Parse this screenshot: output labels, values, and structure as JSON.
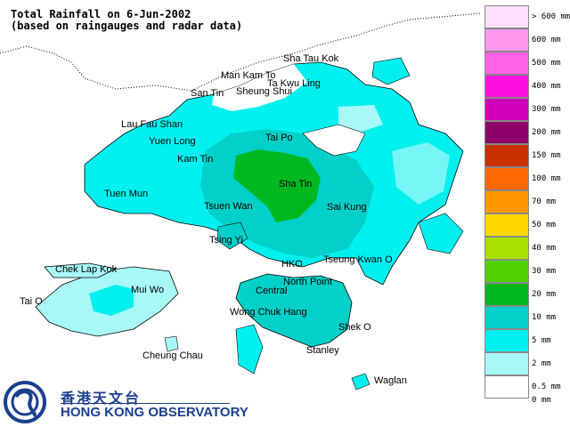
{
  "title_line1": "Total Rainfall on 6-Jun-2002",
  "title_line2": "(based on raingauges and radar data)",
  "colors": {
    "sea": "#ffffff",
    "none": "#ffffff",
    "r0_5": "#a8f8f8",
    "r2": "#00f0f0",
    "r5": "#00d0c8",
    "r10": "#00b820",
    "coast": "#000000"
  },
  "places": [
    {
      "key": "sha_tau_kok",
      "label": "Sha Tau Kok"
    },
    {
      "key": "man_kam_to",
      "label": "Man Kam To"
    },
    {
      "key": "ta_kwu_ling",
      "label": "Ta Kwu Ling"
    },
    {
      "key": "san_tin",
      "label": "San Tin"
    },
    {
      "key": "sheung_shui",
      "label": "Sheung Shui"
    },
    {
      "key": "lau_fau_shan",
      "label": "Lau Fau Shan"
    },
    {
      "key": "yuen_long",
      "label": "Yuen Long"
    },
    {
      "key": "tai_po",
      "label": "Tai Po"
    },
    {
      "key": "kam_tin",
      "label": "Kam Tin"
    },
    {
      "key": "sha_tin",
      "label": "Sha Tin"
    },
    {
      "key": "tuen_mun",
      "label": "Tuen Mun"
    },
    {
      "key": "tsuen_wan",
      "label": "Tsuen Wan"
    },
    {
      "key": "sai_kung",
      "label": "Sai Kung"
    },
    {
      "key": "tsing_yi",
      "label": "Tsing Yi"
    },
    {
      "key": "hko",
      "label": "HKO"
    },
    {
      "key": "tseung_kwan_o",
      "label": "Tseung Kwan O"
    },
    {
      "key": "chek_lap_kok",
      "label": "Chek Lap Kok"
    },
    {
      "key": "north_point",
      "label": "North Point"
    },
    {
      "key": "mui_wo",
      "label": "Mui Wo"
    },
    {
      "key": "central",
      "label": "Central"
    },
    {
      "key": "tai_o",
      "label": "Tai O"
    },
    {
      "key": "wong_chuk_hang",
      "label": "Wong Chuk Hang"
    },
    {
      "key": "shek_o",
      "label": "Shek O"
    },
    {
      "key": "stanley",
      "label": "Stanley"
    },
    {
      "key": "cheung_chau",
      "label": "Cheung Chau"
    },
    {
      "key": "waglan",
      "label": "Waglan"
    }
  ],
  "legend": [
    {
      "label": "> 600 mm",
      "color": "#ffe0ff"
    },
    {
      "label": "600 mm",
      "color": "#ff98f0"
    },
    {
      "label": "500 mm",
      "color": "#ff60e8"
    },
    {
      "label": "400 mm",
      "color": "#ff10e0"
    },
    {
      "label": "300 mm",
      "color": "#d000b8"
    },
    {
      "label": "200 mm",
      "color": "#8c0068"
    },
    {
      "label": "150 mm",
      "color": "#c83000"
    },
    {
      "label": "100 mm",
      "color": "#ff6800"
    },
    {
      "label": "70 mm",
      "color": "#ff9800"
    },
    {
      "label": "50 mm",
      "color": "#ffd800"
    },
    {
      "label": "40 mm",
      "color": "#a8e000"
    },
    {
      "label": "30 mm",
      "color": "#50d000"
    },
    {
      "label": "20 mm",
      "color": "#00b820"
    },
    {
      "label": "10 mm",
      "color": "#00d0c8"
    },
    {
      "label": "5 mm",
      "color": "#00f0f0"
    },
    {
      "label": "2 mm",
      "color": "#a8f8f8"
    },
    {
      "label": "0.5 mm",
      "color": "#ffffff"
    },
    {
      "label": "0 mm",
      "color": ""
    }
  ],
  "logo": {
    "name_cn": "香港天文台",
    "name_en": "HONG KONG OBSERVATORY",
    "color": "#1b3f8f"
  }
}
